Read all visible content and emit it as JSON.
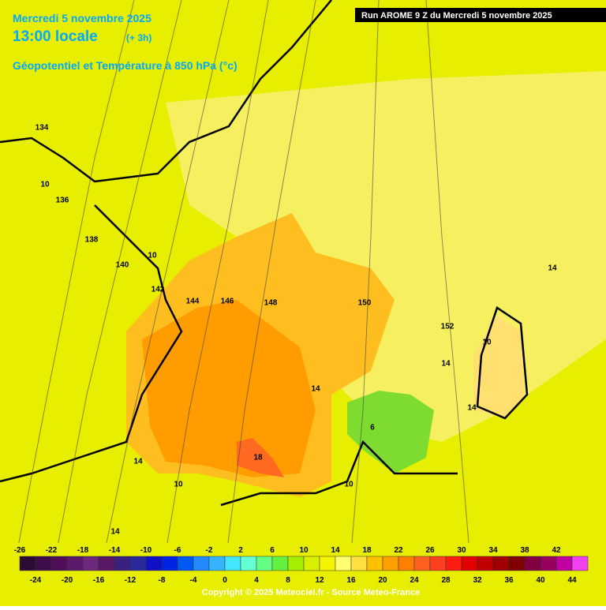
{
  "header": {
    "date": "Mercredi 5 novembre 2025",
    "time": "13:00 locale",
    "offset": "(+ 3h)",
    "field": "Géopotentiel et Température à 850 hPa (°c)",
    "run": "Run AROME 9 Z du Mercredi 5 novembre 2025"
  },
  "contour_labels": [
    134,
    10,
    136,
    138,
    140,
    10,
    142,
    144,
    146,
    148,
    150,
    152,
    14,
    10,
    14,
    14,
    14,
    6,
    18,
    14,
    10,
    10,
    14
  ],
  "colorbar": {
    "labels_top": [
      -26,
      -22,
      -18,
      -14,
      -10,
      -6,
      -2,
      2,
      6,
      10,
      14,
      18,
      22,
      26,
      30,
      34,
      38,
      42
    ],
    "labels_bottom": [
      -24,
      -20,
      -16,
      -12,
      -8,
      -4,
      0,
      4,
      8,
      12,
      16,
      20,
      24,
      28,
      32,
      36,
      40,
      44
    ],
    "colors": [
      "#2c0c34",
      "#3e0c4a",
      "#4e0e5a",
      "#5c1a6c",
      "#6c287c",
      "#581864",
      "#3c2080",
      "#2a2a9c",
      "#1010c4",
      "#0024e4",
      "#0058f4",
      "#2488ff",
      "#34b4ff",
      "#44e4ff",
      "#64ffd4",
      "#64ff84",
      "#64f040",
      "#a4f000",
      "#d8f000",
      "#f4f400",
      "#ffff70",
      "#ffe040",
      "#ffc000",
      "#ffa000",
      "#ff8000",
      "#ff6020",
      "#ff4020",
      "#ff1c10",
      "#e00000",
      "#c00000",
      "#a00000",
      "#800000",
      "#800040",
      "#980060",
      "#c000a0",
      "#f040f0"
    ]
  },
  "copyright": "Copyright © 2025 Meteociel.fr - Source Meteo-France"
}
